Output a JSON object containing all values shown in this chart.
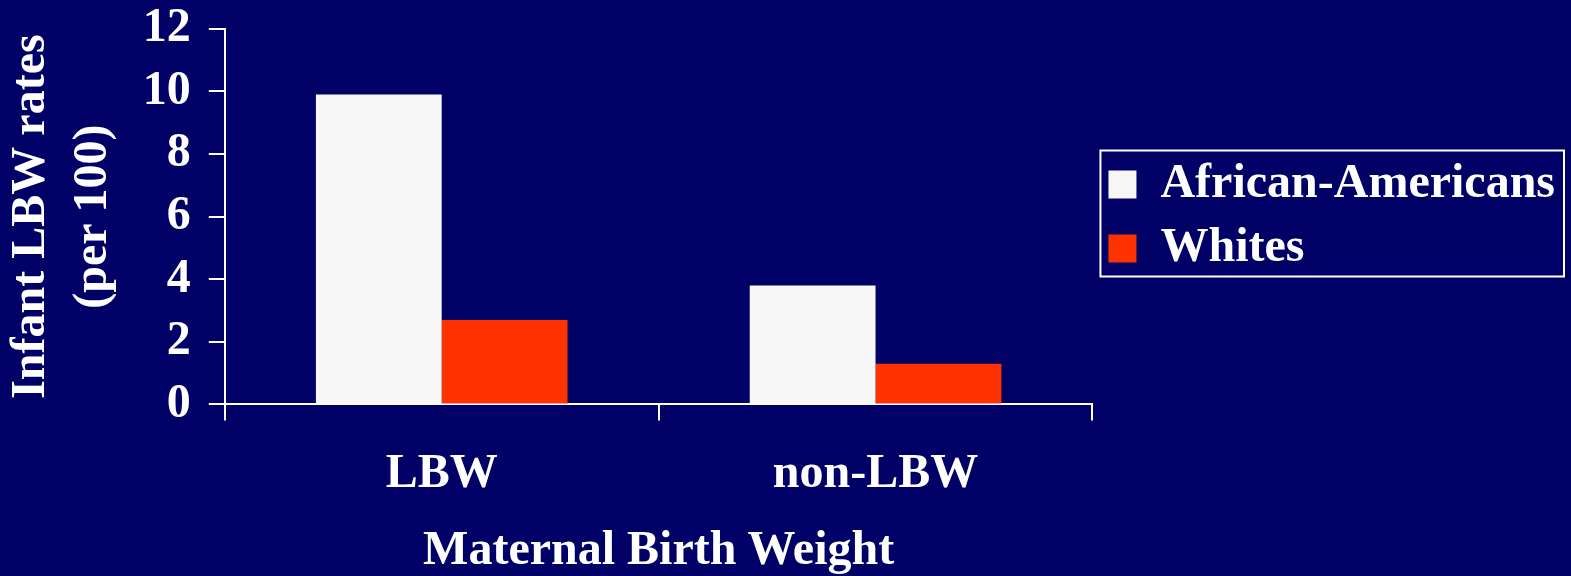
{
  "chart_data": {
    "type": "bar",
    "categories": [
      "LBW",
      "non-LBW"
    ],
    "series": [
      {
        "name": "African-Americans",
        "color": "#f7f7f7",
        "values": [
          9.9,
          3.8
        ]
      },
      {
        "name": "Whites",
        "color": "#ff3300",
        "values": [
          2.7,
          1.3
        ]
      }
    ],
    "xlabel": "Maternal Birth Weight",
    "ylabel": "Infant LBW rates\n(per 100)",
    "ylim": [
      0,
      12
    ],
    "yticks": [
      0,
      2,
      4,
      6,
      8,
      10,
      12
    ],
    "grid": false,
    "legend": "right"
  }
}
